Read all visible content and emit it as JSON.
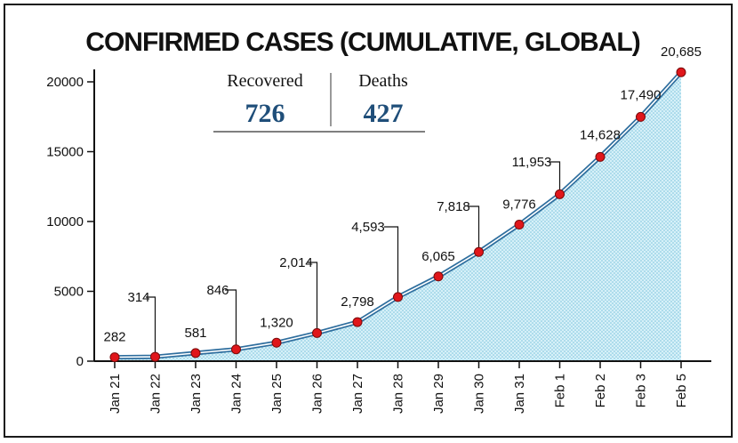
{
  "chart_data": {
    "type": "area",
    "title": "CONFIRMED CASES (CUMULATIVE, GLOBAL)",
    "categories": [
      "Jan 21",
      "Jan 22",
      "Jan 23",
      "Jan 24",
      "Jan 25",
      "Jan 26",
      "Jan 27",
      "Jan 28",
      "Jan 29",
      "Jan 30",
      "Jan 31",
      "Feb 1",
      "Feb 2",
      "Feb 3",
      "Feb 5"
    ],
    "values": [
      282,
      314,
      581,
      846,
      1320,
      2014,
      2798,
      4593,
      6065,
      7818,
      9776,
      11953,
      14628,
      17490,
      20685
    ],
    "data_labels": [
      "282",
      "314",
      "581",
      "846",
      "1,320",
      "2,014",
      "2,798",
      "4,593",
      "6,065",
      "7,818",
      "9,776",
      "11,953",
      "14,628",
      "17,490",
      "20,685"
    ],
    "y_ticks": [
      0,
      5000,
      10000,
      15000,
      20000
    ],
    "y_tick_labels": [
      "0",
      "5000",
      "10000",
      "15000",
      "20000"
    ],
    "ylim": [
      0,
      20000
    ],
    "xlabel": "",
    "ylabel": "",
    "colors": {
      "line": "#2e6e9e",
      "fill": "#bfe6f2",
      "marker": "#e0161b",
      "accent": "#1f4e79"
    }
  },
  "summary": {
    "recovered_label": "Recovered",
    "recovered_value": "726",
    "deaths_label": "Deaths",
    "deaths_value": "427"
  }
}
